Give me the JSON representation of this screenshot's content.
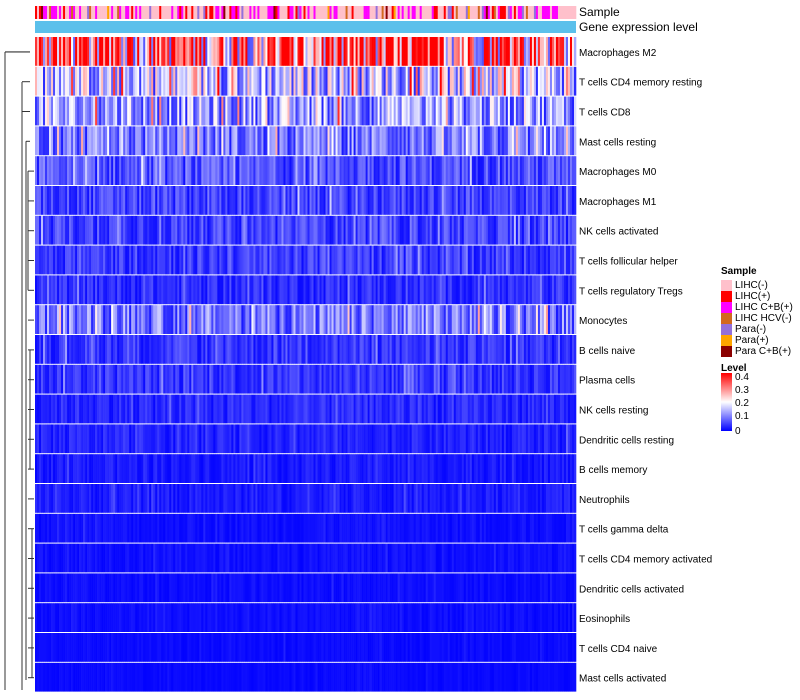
{
  "chart_data": {
    "type": "heatmap",
    "annotation_labels": [
      "Sample",
      "Gene expression level"
    ],
    "rows": [
      {
        "label": "Macrophages M2",
        "mean": 0.3
      },
      {
        "label": "T cells CD4 memory resting",
        "mean": 0.15
      },
      {
        "label": "T cells CD8",
        "mean": 0.12
      },
      {
        "label": "Mast cells resting",
        "mean": 0.09
      },
      {
        "label": "Macrophages M0",
        "mean": 0.06
      },
      {
        "label": "Macrophages M1",
        "mean": 0.05
      },
      {
        "label": "NK cells activated",
        "mean": 0.05
      },
      {
        "label": "T cells follicular helper",
        "mean": 0.045
      },
      {
        "label": "T cells regulatory  Tregs",
        "mean": 0.035
      },
      {
        "label": "Monocytes",
        "mean": 0.09
      },
      {
        "label": "B cells naive",
        "mean": 0.04
      },
      {
        "label": "Plasma cells",
        "mean": 0.04
      },
      {
        "label": "NK cells resting",
        "mean": 0.03
      },
      {
        "label": "Dendritic cells resting",
        "mean": 0.025
      },
      {
        "label": "B cells memory",
        "mean": 0.02
      },
      {
        "label": "Neutrophils",
        "mean": 0.02
      },
      {
        "label": "T cells gamma delta",
        "mean": 0.012
      },
      {
        "label": "T cells CD4 memory activated",
        "mean": 0.012
      },
      {
        "label": "Dendritic cells activated",
        "mean": 0.01
      },
      {
        "label": "Eosinophils",
        "mean": 0.01
      },
      {
        "label": "T cells CD4 naive",
        "mean": 0.008
      },
      {
        "label": "Mast cells activated",
        "mean": 0.006
      }
    ],
    "legend_sample": {
      "title": "Sample",
      "items": [
        {
          "label": "LIHC(-)",
          "color": "#ffc0cb"
        },
        {
          "label": "LIHC(+)",
          "color": "#ff0000"
        },
        {
          "label": "LIHC C+B(+)",
          "color": "#ff00ff"
        },
        {
          "label": "LIHC HCV(-)",
          "color": "#d2691e"
        },
        {
          "label": "Para(-)",
          "color": "#9370db"
        },
        {
          "label": "Para(+)",
          "color": "#ffa500"
        },
        {
          "label": "Para C+B(+)",
          "color": "#8b0000"
        }
      ]
    },
    "legend_level": {
      "title": "Level",
      "ticks": [
        "0.4",
        "0.3",
        "0.2",
        "0.1",
        "0"
      ],
      "range": [
        0,
        0.4
      ],
      "colors": {
        "low": "#0000ff",
        "mid": "#ffffff",
        "high": "#ff0000"
      }
    },
    "gene_expression_color": "#5bc0eb"
  }
}
